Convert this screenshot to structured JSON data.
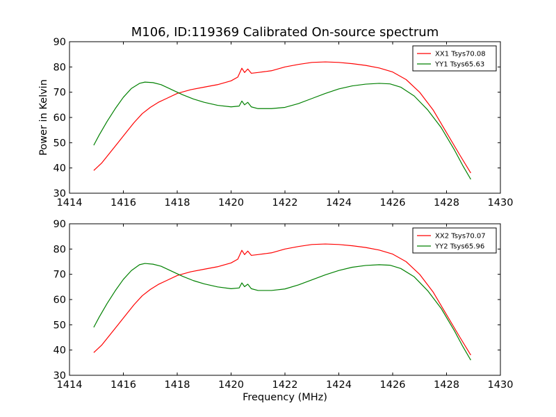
{
  "title": "M106, ID:119369 Calibrated On-source spectrum",
  "colors": {
    "xx": "#ff0000",
    "yy": "#008000",
    "axes": "#000000",
    "background": "#ffffff"
  },
  "chart_data": [
    {
      "type": "line",
      "title": "M106, ID:119369 Calibrated On-source spectrum",
      "xlabel": "",
      "ylabel": "Power in Kelvin",
      "xlim": [
        1414,
        1430
      ],
      "ylim": [
        30,
        90
      ],
      "xticks": [
        1414,
        1416,
        1418,
        1420,
        1422,
        1424,
        1426,
        1428,
        1430
      ],
      "yticks": [
        30,
        40,
        50,
        60,
        70,
        80,
        90
      ],
      "xtick_labels": [
        "1414",
        "1416",
        "1418",
        "1420",
        "1422",
        "1424",
        "1426",
        "1428",
        "1430"
      ],
      "ytick_labels": [
        "30",
        "40",
        "50",
        "60",
        "70",
        "80",
        "90"
      ],
      "grid": false,
      "legend": "top-right",
      "series": [
        {
          "name": "XX1 Tsys70.08",
          "color": "#ff0000",
          "points": [
            [
              1414.9,
              39
            ],
            [
              1415.2,
              42
            ],
            [
              1415.5,
              46
            ],
            [
              1415.8,
              50
            ],
            [
              1416.1,
              54
            ],
            [
              1416.4,
              58
            ],
            [
              1416.7,
              61.5
            ],
            [
              1417.0,
              64
            ],
            [
              1417.3,
              66
            ],
            [
              1417.6,
              67.5
            ],
            [
              1418.0,
              69.5
            ],
            [
              1418.5,
              71
            ],
            [
              1419.0,
              72
            ],
            [
              1419.5,
              73
            ],
            [
              1420.0,
              74.5
            ],
            [
              1420.25,
              76
            ],
            [
              1420.4,
              79.5
            ],
            [
              1420.5,
              77.8
            ],
            [
              1420.62,
              79.2
            ],
            [
              1420.75,
              77.5
            ],
            [
              1421.0,
              77.8
            ],
            [
              1421.5,
              78.5
            ],
            [
              1422.0,
              80
            ],
            [
              1422.5,
              81
            ],
            [
              1423.0,
              81.8
            ],
            [
              1423.5,
              82
            ],
            [
              1424.0,
              81.8
            ],
            [
              1424.5,
              81.3
            ],
            [
              1425.0,
              80.6
            ],
            [
              1425.5,
              79.6
            ],
            [
              1426.0,
              78
            ],
            [
              1426.5,
              75
            ],
            [
              1427.0,
              70
            ],
            [
              1427.5,
              63
            ],
            [
              1428.0,
              54
            ],
            [
              1428.5,
              45
            ],
            [
              1428.9,
              38
            ]
          ]
        },
        {
          "name": "YY1 Tsys65.63",
          "color": "#008000",
          "points": [
            [
              1414.9,
              49
            ],
            [
              1415.1,
              53
            ],
            [
              1415.4,
              58.5
            ],
            [
              1415.7,
              63.5
            ],
            [
              1416.0,
              68
            ],
            [
              1416.3,
              71.5
            ],
            [
              1416.6,
              73.5
            ],
            [
              1416.8,
              74
            ],
            [
              1417.1,
              73.8
            ],
            [
              1417.4,
              73
            ],
            [
              1417.8,
              71
            ],
            [
              1418.2,
              69
            ],
            [
              1418.6,
              67.3
            ],
            [
              1419.0,
              66
            ],
            [
              1419.5,
              64.8
            ],
            [
              1420.0,
              64.2
            ],
            [
              1420.3,
              64.5
            ],
            [
              1420.4,
              66.5
            ],
            [
              1420.5,
              65
            ],
            [
              1420.62,
              66
            ],
            [
              1420.75,
              64.2
            ],
            [
              1421.0,
              63.5
            ],
            [
              1421.5,
              63.5
            ],
            [
              1422.0,
              64
            ],
            [
              1422.5,
              65.5
            ],
            [
              1423.0,
              67.5
            ],
            [
              1423.5,
              69.5
            ],
            [
              1424.0,
              71.3
            ],
            [
              1424.5,
              72.5
            ],
            [
              1425.0,
              73.2
            ],
            [
              1425.5,
              73.5
            ],
            [
              1425.9,
              73.3
            ],
            [
              1426.3,
              72
            ],
            [
              1426.8,
              68.5
            ],
            [
              1427.3,
              63
            ],
            [
              1427.8,
              56
            ],
            [
              1428.3,
              47
            ],
            [
              1428.6,
              41
            ],
            [
              1428.9,
              35.5
            ]
          ]
        }
      ]
    },
    {
      "type": "line",
      "title": "",
      "xlabel": "Frequency (MHz)",
      "ylabel": "",
      "xlim": [
        1414,
        1430
      ],
      "ylim": [
        30,
        90
      ],
      "xticks": [
        1414,
        1416,
        1418,
        1420,
        1422,
        1424,
        1426,
        1428,
        1430
      ],
      "yticks": [
        30,
        40,
        50,
        60,
        70,
        80,
        90
      ],
      "xtick_labels": [
        "1414",
        "1416",
        "1418",
        "1420",
        "1422",
        "1424",
        "1426",
        "1428",
        "1430"
      ],
      "ytick_labels": [
        "30",
        "40",
        "50",
        "60",
        "70",
        "80",
        "90"
      ],
      "grid": false,
      "legend": "top-right",
      "series": [
        {
          "name": "XX2 Tsys70.07",
          "color": "#ff0000",
          "points": [
            [
              1414.9,
              39
            ],
            [
              1415.2,
              42
            ],
            [
              1415.5,
              46
            ],
            [
              1415.8,
              50
            ],
            [
              1416.1,
              54
            ],
            [
              1416.4,
              58
            ],
            [
              1416.7,
              61.5
            ],
            [
              1417.0,
              64
            ],
            [
              1417.3,
              66
            ],
            [
              1417.6,
              67.5
            ],
            [
              1418.0,
              69.5
            ],
            [
              1418.5,
              71
            ],
            [
              1419.0,
              72
            ],
            [
              1419.5,
              73
            ],
            [
              1420.0,
              74.5
            ],
            [
              1420.25,
              76
            ],
            [
              1420.4,
              79.5
            ],
            [
              1420.5,
              77.8
            ],
            [
              1420.62,
              79.2
            ],
            [
              1420.75,
              77.5
            ],
            [
              1421.0,
              77.8
            ],
            [
              1421.5,
              78.5
            ],
            [
              1422.0,
              80
            ],
            [
              1422.5,
              81
            ],
            [
              1423.0,
              81.8
            ],
            [
              1423.5,
              82
            ],
            [
              1424.0,
              81.8
            ],
            [
              1424.5,
              81.3
            ],
            [
              1425.0,
              80.6
            ],
            [
              1425.5,
              79.6
            ],
            [
              1426.0,
              78
            ],
            [
              1426.5,
              75
            ],
            [
              1427.0,
              70
            ],
            [
              1427.5,
              63
            ],
            [
              1428.0,
              54
            ],
            [
              1428.5,
              45
            ],
            [
              1428.9,
              38
            ]
          ]
        },
        {
          "name": "YY2 Tsys65.96",
          "color": "#008000",
          "points": [
            [
              1414.9,
              49
            ],
            [
              1415.1,
              53
            ],
            [
              1415.4,
              58.5
            ],
            [
              1415.7,
              63.5
            ],
            [
              1416.0,
              68
            ],
            [
              1416.3,
              71.5
            ],
            [
              1416.6,
              73.8
            ],
            [
              1416.8,
              74.3
            ],
            [
              1417.1,
              74
            ],
            [
              1417.4,
              73.2
            ],
            [
              1417.8,
              71.2
            ],
            [
              1418.2,
              69.2
            ],
            [
              1418.6,
              67.5
            ],
            [
              1419.0,
              66.2
            ],
            [
              1419.5,
              65
            ],
            [
              1420.0,
              64.3
            ],
            [
              1420.3,
              64.6
            ],
            [
              1420.4,
              66.6
            ],
            [
              1420.5,
              65.1
            ],
            [
              1420.62,
              66.1
            ],
            [
              1420.75,
              64.3
            ],
            [
              1421.0,
              63.6
            ],
            [
              1421.5,
              63.6
            ],
            [
              1422.0,
              64.2
            ],
            [
              1422.5,
              65.8
            ],
            [
              1423.0,
              67.8
            ],
            [
              1423.5,
              69.8
            ],
            [
              1424.0,
              71.5
            ],
            [
              1424.5,
              72.8
            ],
            [
              1425.0,
              73.5
            ],
            [
              1425.5,
              73.8
            ],
            [
              1425.9,
              73.6
            ],
            [
              1426.3,
              72.3
            ],
            [
              1426.8,
              69
            ],
            [
              1427.3,
              63.5
            ],
            [
              1427.8,
              56.5
            ],
            [
              1428.3,
              47.5
            ],
            [
              1428.6,
              41.5
            ],
            [
              1428.9,
              36
            ]
          ]
        }
      ]
    }
  ]
}
